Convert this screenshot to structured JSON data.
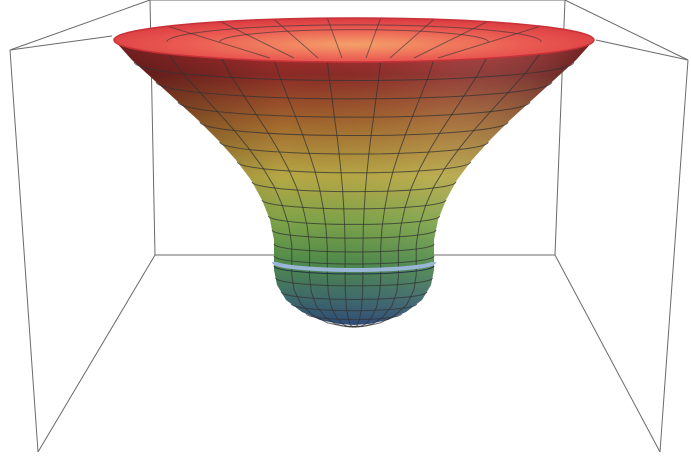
{
  "scene": {
    "type": "3d-surface-of-revolution",
    "shape": "funnel-with-rounded-bulb",
    "colors": {
      "background": "#ffffff",
      "box_lines": "#555555",
      "mesh_lines": "#3a3a3a",
      "top_red": "#e8454a",
      "upper_orange": "#d98a3d",
      "middle_yellow": "#bfb447",
      "lower_green": "#6aa14b",
      "bottom_blue": "#36507a",
      "equator_band": "#8aa8c8"
    }
  }
}
